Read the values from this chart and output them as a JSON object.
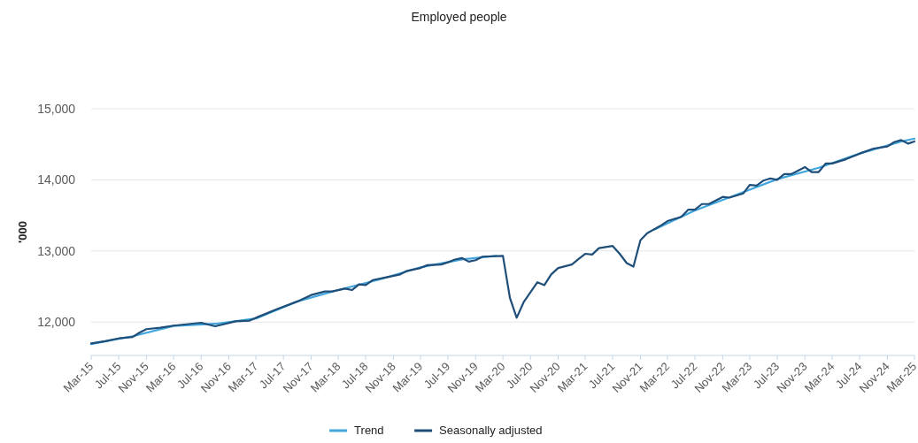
{
  "chart_data": {
    "type": "line",
    "title": "Employed people",
    "ylabel": "'000",
    "xlim": [
      "2015-03",
      "2025-03"
    ],
    "xticks": [
      {
        "value": "2015-03",
        "label": "Mar-15"
      },
      {
        "value": "2015-07",
        "label": "Jul-15"
      },
      {
        "value": "2015-11",
        "label": "Nov-15"
      },
      {
        "value": "2016-03",
        "label": "Mar-16"
      },
      {
        "value": "2016-07",
        "label": "Jul-16"
      },
      {
        "value": "2016-11",
        "label": "Nov-16"
      },
      {
        "value": "2017-03",
        "label": "Mar-17"
      },
      {
        "value": "2017-07",
        "label": "Jul-17"
      },
      {
        "value": "2017-11",
        "label": "Nov-17"
      },
      {
        "value": "2018-03",
        "label": "Mar-18"
      },
      {
        "value": "2018-07",
        "label": "Jul-18"
      },
      {
        "value": "2018-11",
        "label": "Nov-18"
      },
      {
        "value": "2019-03",
        "label": "Mar-19"
      },
      {
        "value": "2019-07",
        "label": "Jul-19"
      },
      {
        "value": "2019-11",
        "label": "Nov-19"
      },
      {
        "value": "2020-03",
        "label": "Mar-20"
      },
      {
        "value": "2020-07",
        "label": "Jul-20"
      },
      {
        "value": "2020-11",
        "label": "Nov-20"
      },
      {
        "value": "2021-03",
        "label": "Mar-21"
      },
      {
        "value": "2021-07",
        "label": "Jul-21"
      },
      {
        "value": "2021-11",
        "label": "Nov-21"
      },
      {
        "value": "2022-03",
        "label": "Mar-22"
      },
      {
        "value": "2022-07",
        "label": "Jul-22"
      },
      {
        "value": "2022-11",
        "label": "Nov-22"
      },
      {
        "value": "2023-03",
        "label": "Mar-23"
      },
      {
        "value": "2023-07",
        "label": "Jul-23"
      },
      {
        "value": "2023-11",
        "label": "Nov-23"
      },
      {
        "value": "2024-03",
        "label": "Mar-24"
      },
      {
        "value": "2024-07",
        "label": "Jul-24"
      },
      {
        "value": "2024-11",
        "label": "Nov-24"
      },
      {
        "value": "2025-03",
        "label": "Mar-25"
      }
    ],
    "ylim": [
      11530,
      15000
    ],
    "yticks": [
      {
        "value": 12000,
        "label": "12,000"
      },
      {
        "value": 13000,
        "label": "13,000"
      },
      {
        "value": 14000,
        "label": "14,000"
      },
      {
        "value": 15000,
        "label": "15,000"
      }
    ],
    "grid": "y",
    "legend": "bottom",
    "marker": "none",
    "line_style": "solid",
    "series": [
      {
        "name": "Trend",
        "color": "#41a6dd",
        "x": [
          "2015-03",
          "2015-09",
          "2016-03",
          "2016-09",
          "2017-03",
          "2017-09",
          "2018-03",
          "2018-09",
          "2019-03",
          "2019-09",
          "2020-02",
          "2020-03",
          "2022-01",
          "2022-07",
          "2023-01",
          "2023-07",
          "2024-01",
          "2024-07",
          "2025-01",
          "2025-03"
        ],
        "values": [
          11690,
          11800,
          11945,
          11975,
          12050,
          12290,
          12450,
          12600,
          12770,
          12880,
          12930,
          null,
          13300,
          13570,
          13790,
          14010,
          14170,
          14370,
          14540,
          14580
        ]
      },
      {
        "name": "Seasonally adjusted",
        "color": "#1f4e79",
        "x": [
          "2015-03",
          "2015-05",
          "2015-07",
          "2015-09",
          "2015-10",
          "2015-11",
          "2016-01",
          "2016-03",
          "2016-07",
          "2016-09",
          "2016-12",
          "2017-02",
          "2017-03",
          "2017-06",
          "2017-09",
          "2017-11",
          "2018-01",
          "2018-02",
          "2018-04",
          "2018-05",
          "2018-06",
          "2018-07",
          "2018-08",
          "2018-10",
          "2018-12",
          "2019-01",
          "2019-03",
          "2019-04",
          "2019-06",
          "2019-07",
          "2019-08",
          "2019-09",
          "2019-10",
          "2019-11",
          "2019-12",
          "2020-03",
          "2020-04",
          "2020-05",
          "2020-06",
          "2020-08",
          "2020-09",
          "2020-10",
          "2020-11",
          "2021-01",
          "2021-02",
          "2021-03",
          "2021-04",
          "2021-05",
          "2021-07",
          "2021-08",
          "2021-09",
          "2021-10",
          "2021-11",
          "2021-12",
          "2022-02",
          "2022-03",
          "2022-05",
          "2022-06",
          "2022-07",
          "2022-08",
          "2022-09",
          "2022-11",
          "2022-12",
          "2023-02",
          "2023-03",
          "2023-04",
          "2023-05",
          "2023-06",
          "2023-07",
          "2023-08",
          "2023-09",
          "2023-11",
          "2023-12",
          "2024-01",
          "2024-02",
          "2024-03",
          "2024-05",
          "2024-07",
          "2024-09",
          "2024-11",
          "2024-12",
          "2025-01",
          "2025-02",
          "2025-03"
        ],
        "values": [
          11700,
          11730,
          11770,
          11790,
          11850,
          11900,
          11920,
          11950,
          11990,
          11940,
          12010,
          12020,
          12060,
          12180,
          12290,
          12380,
          12430,
          12430,
          12470,
          12450,
          12530,
          12520,
          12590,
          12630,
          12670,
          12720,
          12760,
          12800,
          12810,
          12840,
          12880,
          12900,
          12850,
          12870,
          12920,
          12930,
          12340,
          12060,
          12280,
          12560,
          12520,
          12670,
          12760,
          12810,
          12890,
          12960,
          12950,
          13040,
          13070,
          12960,
          12830,
          12780,
          13150,
          13250,
          13360,
          13420,
          13480,
          13580,
          13580,
          13660,
          13660,
          13760,
          13750,
          13810,
          13930,
          13920,
          13990,
          14020,
          14000,
          14080,
          14080,
          14180,
          14110,
          14110,
          14230,
          14230,
          14290,
          14370,
          14440,
          14470,
          14530,
          14560,
          14510,
          14540
        ]
      }
    ]
  }
}
